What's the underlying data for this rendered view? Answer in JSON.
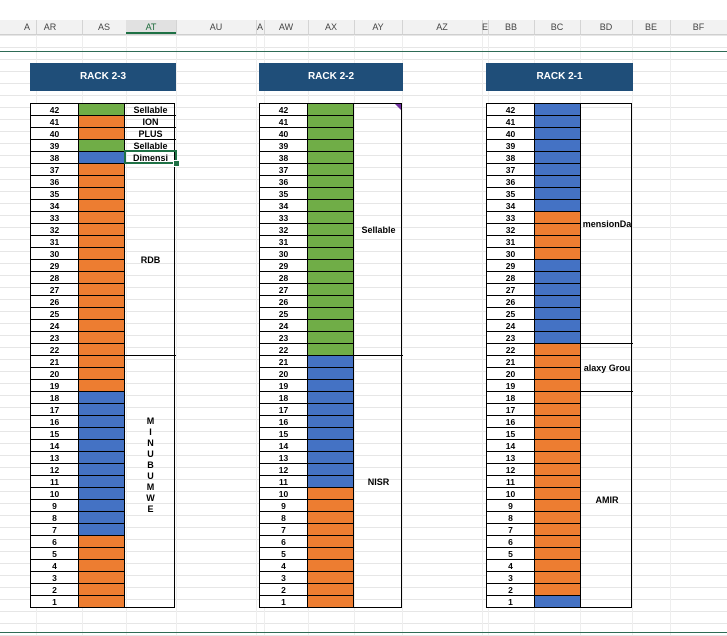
{
  "columns": [
    "A",
    "AR",
    "AS",
    "AT",
    "AU",
    "A",
    "AW",
    "AX",
    "AY",
    "AZ",
    "E",
    "BB",
    "BC",
    "BD",
    "BE",
    "BF"
  ],
  "selected_column": "AT",
  "colors": {
    "green": "#70ad47",
    "orange": "#ed7d31",
    "blue": "#4472c4",
    "header": "#1f4e79"
  },
  "racks": [
    {
      "title": "RACK 2-3",
      "units": [
        "G",
        "O",
        "O",
        "G",
        "B",
        "O",
        "O",
        "O",
        "O",
        "O",
        "O",
        "O",
        "O",
        "O",
        "O",
        "O",
        "O",
        "O",
        "O",
        "O",
        "O",
        "O",
        "O",
        "O",
        "B",
        "B",
        "B",
        "B",
        "B",
        "B",
        "B",
        "B",
        "B",
        "B",
        "B",
        "B",
        "O",
        "O",
        "O",
        "O",
        "O",
        "O"
      ],
      "labels": [
        {
          "text": "Sellable",
          "from": 42,
          "to": 42
        },
        {
          "text": "ION",
          "from": 41,
          "to": 41
        },
        {
          "text": "PLUS",
          "from": 40,
          "to": 40
        },
        {
          "text": "Sellable",
          "from": 39,
          "to": 39
        },
        {
          "text": "Dimensi",
          "from": 38,
          "to": 38
        },
        {
          "text": "RDB",
          "from": 37,
          "to": 22
        },
        {
          "text": "MINUBUMWE",
          "from": 21,
          "to": 1,
          "vertical": true
        }
      ]
    },
    {
      "title": "RACK 2-2",
      "units": [
        "G",
        "G",
        "G",
        "G",
        "G",
        "G",
        "G",
        "G",
        "G",
        "G",
        "G",
        "G",
        "G",
        "G",
        "G",
        "G",
        "G",
        "G",
        "G",
        "G",
        "G",
        "B",
        "B",
        "B",
        "B",
        "B",
        "B",
        "B",
        "B",
        "B",
        "B",
        "B",
        "O",
        "O",
        "O",
        "O",
        "O",
        "O",
        "O",
        "O",
        "O",
        "O"
      ],
      "labels": [
        {
          "text": "Sellable",
          "from": 42,
          "to": 22
        },
        {
          "text": "NISR",
          "from": 21,
          "to": 1
        }
      ]
    },
    {
      "title": "RACK 2-1",
      "units": [
        "B",
        "B",
        "B",
        "B",
        "B",
        "B",
        "B",
        "B",
        "B",
        "O",
        "O",
        "O",
        "O",
        "B",
        "B",
        "B",
        "B",
        "B",
        "B",
        "B",
        "O",
        "O",
        "O",
        "O",
        "O",
        "O",
        "O",
        "O",
        "O",
        "O",
        "O",
        "O",
        "O",
        "O",
        "O",
        "O",
        "O",
        "O",
        "O",
        "O",
        "O",
        "B"
      ],
      "labels": [
        {
          "text": "mensionDa",
          "from": 42,
          "to": 23
        },
        {
          "text": "alaxy Grou",
          "from": 22,
          "to": 19
        },
        {
          "text": "AMIR",
          "from": 18,
          "to": 1
        }
      ]
    }
  ]
}
